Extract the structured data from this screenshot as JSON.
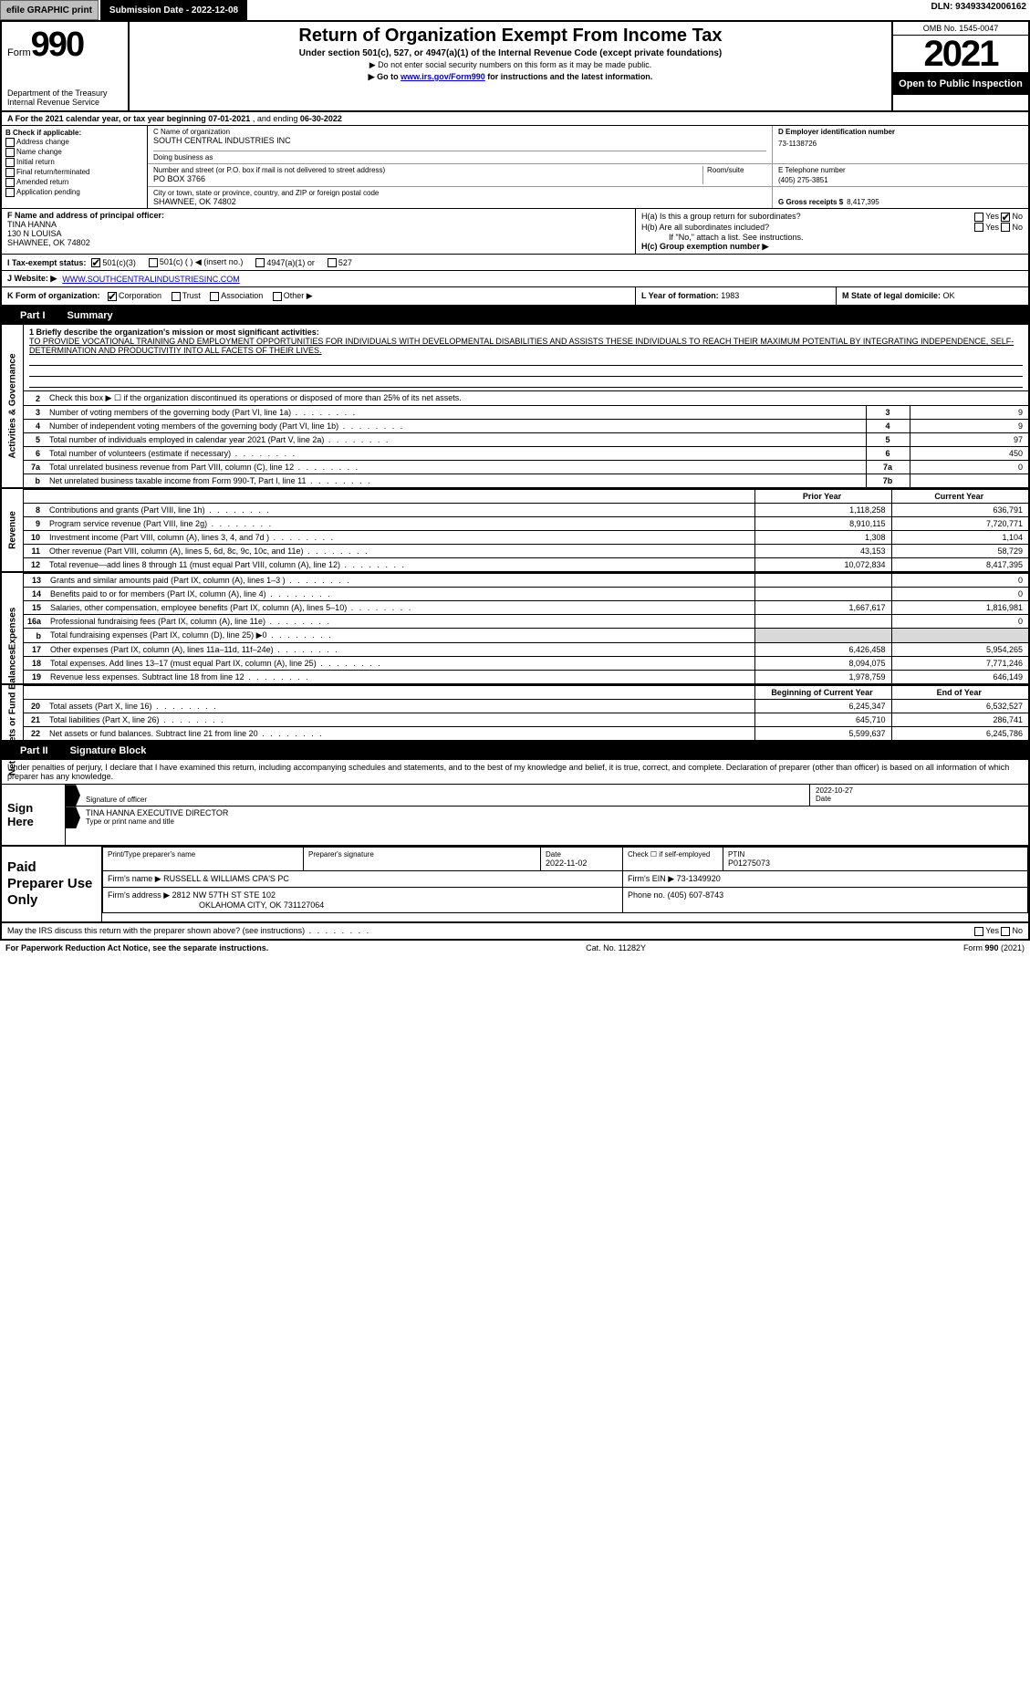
{
  "topbar": {
    "efile": "efile GRAPHIC print",
    "submission": "Submission Date - 2022-12-08",
    "dln": "DLN: 93493342006162"
  },
  "header": {
    "form_label": "Form",
    "form_num": "990",
    "title": "Return of Organization Exempt From Income Tax",
    "subtitle": "Under section 501(c), 527, or 4947(a)(1) of the Internal Revenue Code (except private foundations)",
    "note1": "▶ Do not enter social security numbers on this form as it may be made public.",
    "note2_pre": "▶ Go to ",
    "note2_link": "www.irs.gov/Form990",
    "note2_post": " for instructions and the latest information.",
    "dept": "Department of the Treasury",
    "irs": "Internal Revenue Service",
    "omb": "OMB No. 1545-0047",
    "year": "2021",
    "open": "Open to Public Inspection"
  },
  "a": {
    "text_pre": "A For the 2021 calendar year, or tax year beginning ",
    "begin": "07-01-2021",
    "mid": " , and ending ",
    "end": "06-30-2022"
  },
  "b": {
    "label": "B Check if applicable:",
    "opts": [
      "Address change",
      "Name change",
      "Initial return",
      "Final return/terminated",
      "Amended return",
      "Application pending"
    ]
  },
  "c": {
    "name_lbl": "C Name of organization",
    "name": "SOUTH CENTRAL INDUSTRIES INC",
    "dba_lbl": "Doing business as",
    "dba": "",
    "addr_lbl": "Number and street (or P.O. box if mail is not delivered to street address)",
    "room_lbl": "Room/suite",
    "addr": "PO BOX 3766",
    "city_lbl": "City or town, state or province, country, and ZIP or foreign postal code",
    "city": "SHAWNEE, OK  74802"
  },
  "d": {
    "lbl": "D Employer identification number",
    "val": "73-1138726"
  },
  "e": {
    "lbl": "E Telephone number",
    "val": "(405) 275-3851"
  },
  "g": {
    "lbl": "G Gross receipts $",
    "val": "8,417,395"
  },
  "f": {
    "lbl": "F Name and address of principal officer:",
    "name": "TINA HANNA",
    "addr1": "130 N LOUISA",
    "addr2": "SHAWNEE, OK  74802"
  },
  "h": {
    "a": "H(a)  Is this a group return for subordinates?",
    "a_yes": "Yes",
    "a_no": "No",
    "b": "H(b)  Are all subordinates included?",
    "b_note": "If \"No,\" attach a list. See instructions.",
    "c": "H(c)  Group exemption number ▶"
  },
  "i": {
    "lbl": "I  Tax-exempt status:",
    "o1": "501(c)(3)",
    "o2": "501(c) (    ) ◀ (insert no.)",
    "o3": "4947(a)(1) or",
    "o4": "527"
  },
  "j": {
    "lbl": "J  Website: ▶",
    "val": "WWW.SOUTHCENTRALINDUSTRIESINC.COM"
  },
  "k": {
    "lbl": "K Form of organization:",
    "o1": "Corporation",
    "o2": "Trust",
    "o3": "Association",
    "o4": "Other ▶"
  },
  "l": {
    "lbl": "L Year of formation:",
    "val": "1983"
  },
  "m": {
    "lbl": "M State of legal domicile:",
    "val": "OK"
  },
  "part1": {
    "tab": "Part I",
    "title": "Summary"
  },
  "mission": {
    "lead": "1  Briefly describe the organization's mission or most significant activities:",
    "text": "TO PROVIDE VOCATIONAL TRAINING AND EMPLOYMENT OPPORTUNITIES FOR INDIVIDUALS WITH DEVELOPMENTAL DISABILITIES AND ASSISTS THESE INDIVIDUALS TO REACH THEIR MAXIMUM POTENTIAL BY INTEGRATING INDEPENDENCE, SELF-DETERMINATION AND PRODUCTIVITIY INTO ALL FACETS OF THEIR LIVES."
  },
  "gov_rows": [
    {
      "n": "2",
      "d": "Check this box ▶ ☐ if the organization discontinued its operations or disposed of more than 25% of its net assets.",
      "box": "",
      "v": ""
    },
    {
      "n": "3",
      "d": "Number of voting members of the governing body (Part VI, line 1a)",
      "box": "3",
      "v": "9"
    },
    {
      "n": "4",
      "d": "Number of independent voting members of the governing body (Part VI, line 1b)",
      "box": "4",
      "v": "9"
    },
    {
      "n": "5",
      "d": "Total number of individuals employed in calendar year 2021 (Part V, line 2a)",
      "box": "5",
      "v": "97"
    },
    {
      "n": "6",
      "d": "Total number of volunteers (estimate if necessary)",
      "box": "6",
      "v": "450"
    },
    {
      "n": "7a",
      "d": "Total unrelated business revenue from Part VIII, column (C), line 12",
      "box": "7a",
      "v": "0"
    },
    {
      "n": "b",
      "d": "Net unrelated business taxable income from Form 990-T, Part I, line 11",
      "box": "7b",
      "v": ""
    }
  ],
  "col_hdr": {
    "prior": "Prior Year",
    "current": "Current Year"
  },
  "rev_rows": [
    {
      "n": "8",
      "d": "Contributions and grants (Part VIII, line 1h)",
      "p": "1,118,258",
      "c": "636,791"
    },
    {
      "n": "9",
      "d": "Program service revenue (Part VIII, line 2g)",
      "p": "8,910,115",
      "c": "7,720,771"
    },
    {
      "n": "10",
      "d": "Investment income (Part VIII, column (A), lines 3, 4, and 7d )",
      "p": "1,308",
      "c": "1,104"
    },
    {
      "n": "11",
      "d": "Other revenue (Part VIII, column (A), lines 5, 6d, 8c, 9c, 10c, and 11e)",
      "p": "43,153",
      "c": "58,729"
    },
    {
      "n": "12",
      "d": "Total revenue—add lines 8 through 11 (must equal Part VIII, column (A), line 12)",
      "p": "10,072,834",
      "c": "8,417,395"
    }
  ],
  "exp_rows": [
    {
      "n": "13",
      "d": "Grants and similar amounts paid (Part IX, column (A), lines 1–3 )",
      "p": "",
      "c": "0"
    },
    {
      "n": "14",
      "d": "Benefits paid to or for members (Part IX, column (A), line 4)",
      "p": "",
      "c": "0"
    },
    {
      "n": "15",
      "d": "Salaries, other compensation, employee benefits (Part IX, column (A), lines 5–10)",
      "p": "1,667,617",
      "c": "1,816,981"
    },
    {
      "n": "16a",
      "d": "Professional fundraising fees (Part IX, column (A), line 11e)",
      "p": "",
      "c": "0"
    },
    {
      "n": "b",
      "d": "Total fundraising expenses (Part IX, column (D), line 25) ▶0",
      "p": "GREY",
      "c": "GREY"
    },
    {
      "n": "17",
      "d": "Other expenses (Part IX, column (A), lines 11a–11d, 11f–24e)",
      "p": "6,426,458",
      "c": "5,954,265"
    },
    {
      "n": "18",
      "d": "Total expenses. Add lines 13–17 (must equal Part IX, column (A), line 25)",
      "p": "8,094,075",
      "c": "7,771,246"
    },
    {
      "n": "19",
      "d": "Revenue less expenses. Subtract line 18 from line 12",
      "p": "1,978,759",
      "c": "646,149"
    }
  ],
  "na_hdr": {
    "begin": "Beginning of Current Year",
    "end": "End of Year"
  },
  "na_rows": [
    {
      "n": "20",
      "d": "Total assets (Part X, line 16)",
      "p": "6,245,347",
      "c": "6,532,527"
    },
    {
      "n": "21",
      "d": "Total liabilities (Part X, line 26)",
      "p": "645,710",
      "c": "286,741"
    },
    {
      "n": "22",
      "d": "Net assets or fund balances. Subtract line 21 from line 20",
      "p": "5,599,637",
      "c": "6,245,786"
    }
  ],
  "side": {
    "gov": "Activities & Governance",
    "rev": "Revenue",
    "exp": "Expenses",
    "na": "Net Assets or Fund Balances"
  },
  "part2": {
    "tab": "Part II",
    "title": "Signature Block"
  },
  "penalty": "Under penalties of perjury, I declare that I have examined this return, including accompanying schedules and statements, and to the best of my knowledge and belief, it is true, correct, and complete. Declaration of preparer (other than officer) is based on all information of which preparer has any knowledge.",
  "sign": {
    "here": "Sign Here",
    "sig_lbl": "Signature of officer",
    "date_lbl": "Date",
    "date": "2022-10-27",
    "name": "TINA HANNA  EXECUTIVE DIRECTOR",
    "name_lbl": "Type or print name and title"
  },
  "prep": {
    "title": "Paid Preparer Use Only",
    "r1": {
      "c1_lbl": "Print/Type preparer's name",
      "c1": "",
      "c2_lbl": "Preparer's signature",
      "c2": "",
      "c3_lbl": "Date",
      "c3": "2022-11-02",
      "c4_lbl": "Check ☐ if self-employed",
      "c5_lbl": "PTIN",
      "c5": "P01275073"
    },
    "r2": {
      "lbl": "Firm's name    ▶",
      "val": "RUSSELL & WILLIAMS CPA'S PC",
      "ein_lbl": "Firm's EIN ▶",
      "ein": "73-1349920"
    },
    "r3": {
      "lbl": "Firm's address ▶",
      "val1": "2812 NW 57TH ST STE 102",
      "val2": "OKLAHOMA CITY, OK  731127064",
      "ph_lbl": "Phone no.",
      "ph": "(405) 607-8743"
    }
  },
  "discuss": {
    "q": "May the IRS discuss this return with the preparer shown above? (see instructions)",
    "yes": "Yes",
    "no": "No"
  },
  "footer": {
    "pra": "For Paperwork Reduction Act Notice, see the separate instructions.",
    "cat": "Cat. No. 11282Y",
    "form": "Form 990 (2021)"
  }
}
